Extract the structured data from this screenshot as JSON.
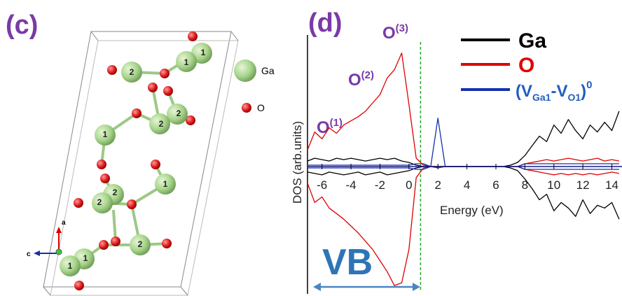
{
  "panel_c": {
    "label": "(c)",
    "atoms": [
      {
        "label": "1"
      },
      {
        "label": "1"
      },
      {
        "label": "2"
      },
      {
        "label": "2"
      },
      {
        "label": "2"
      },
      {
        "label": "1"
      },
      {
        "label": "2"
      },
      {
        "label": "2"
      },
      {
        "label": "1"
      },
      {
        "label": "2"
      },
      {
        "label": "1"
      },
      {
        "label": "1"
      }
    ],
    "legend": [
      {
        "label": "Ga"
      },
      {
        "label": "O"
      }
    ],
    "axes": [
      {
        "label": "a"
      },
      {
        "label": "c"
      }
    ]
  },
  "chart_data": {
    "type": "line",
    "panel_label": "(d)",
    "ylabel": "DOS (arb.units)",
    "xlabel": "Energy (eV)",
    "xlim": [
      -7,
      14.7
    ],
    "ylim": [
      -9,
      9
    ],
    "xticks": [
      -6,
      -4,
      -2,
      0,
      2,
      4,
      6,
      8,
      10,
      12,
      14
    ],
    "vbm": 0.8,
    "vb_label": "VB",
    "annotations": [
      {
        "text": "O",
        "sup": "(1)"
      },
      {
        "text": "O",
        "sup": "(2)"
      },
      {
        "text": "O",
        "sup": "(3)"
      }
    ],
    "x": [
      -7,
      -6.5,
      -6,
      -5.5,
      -5,
      -4.5,
      -4,
      -3.5,
      -3,
      -2.5,
      -2,
      -1.5,
      -1,
      -0.5,
      0,
      0.5,
      1,
      1.5,
      2,
      2.5,
      3,
      3.5,
      4,
      4.5,
      5,
      5.5,
      6,
      6.5,
      7,
      7.5,
      8,
      8.5,
      9,
      9.5,
      10,
      10.5,
      11,
      11.5,
      12,
      12.5,
      13,
      13.5,
      14,
      14.5
    ],
    "series": [
      {
        "name": "Ga",
        "color": "#000000",
        "values": [
          0.4,
          0.6,
          0.5,
          0.4,
          0.6,
          0.5,
          0.6,
          0.5,
          0.4,
          0.5,
          0.6,
          0.5,
          0.6,
          0.4,
          0.3,
          0.1,
          0,
          0,
          0,
          0,
          0,
          0,
          0,
          0,
          0,
          0,
          0,
          0,
          0.1,
          0.3,
          0.8,
          1.5,
          2.2,
          1.8,
          3.0,
          2.4,
          3.4,
          2.6,
          2.0,
          3.0,
          2.5,
          3.2,
          2.6,
          4.0
        ],
        "values_down": [
          -0.4,
          -0.5,
          -0.6,
          -0.4,
          -0.5,
          -0.6,
          -0.5,
          -0.4,
          -0.6,
          -0.5,
          -0.4,
          -0.6,
          -0.5,
          -0.4,
          -0.3,
          -0.1,
          0,
          0,
          0,
          0,
          0,
          0,
          0,
          0,
          0,
          0,
          0,
          0,
          -0.1,
          -0.3,
          -0.9,
          -1.6,
          -2.4,
          -2.0,
          -3.2,
          -2.6,
          -3.0,
          -3.6,
          -2.4,
          -3.4,
          -2.8,
          -3.0,
          -2.6,
          -3.8
        ]
      },
      {
        "name": "O",
        "color": "#e00000",
        "values": [
          1.2,
          2.5,
          2.0,
          2.8,
          2.4,
          3.0,
          3.3,
          3.6,
          4.0,
          4.6,
          5.2,
          6.4,
          7.0,
          8.2,
          4.5,
          0.6,
          0.1,
          0,
          0,
          0,
          0,
          0,
          0,
          0,
          0,
          0,
          0,
          0,
          0,
          0,
          0.2,
          0.3,
          0.4,
          0.5,
          0.4,
          0.5,
          0.6,
          0.5,
          0.4,
          0.5,
          0.6,
          0.4,
          0.5,
          0.4
        ],
        "values_down": [
          -1.2,
          -2.6,
          -2.2,
          -3.0,
          -3.4,
          -3.8,
          -4.3,
          -4.8,
          -5.4,
          -6.0,
          -6.8,
          -7.6,
          -8.6,
          -8.4,
          -6.0,
          -0.8,
          -0.1,
          0,
          0,
          0,
          0,
          0,
          0,
          0,
          0,
          0,
          0,
          0,
          0,
          0,
          -0.2,
          -0.3,
          -0.4,
          -0.5,
          -0.6,
          -0.5,
          -0.6,
          -0.5,
          -0.6,
          -0.5,
          -0.6,
          -0.5,
          -0.4,
          -0.5
        ]
      },
      {
        "name_parts": [
          "(V",
          "Ga1",
          "-V",
          "O1",
          ")",
          "0"
        ],
        "color": "#1530b0",
        "values": [
          0.1,
          0.1,
          0.1,
          0.1,
          0.1,
          0.1,
          0.1,
          0.1,
          0.1,
          0.1,
          0.1,
          0.1,
          0.1,
          0.1,
          0.1,
          0.2,
          0.2,
          0,
          3.5,
          0,
          0,
          0,
          0,
          0,
          0,
          0,
          0,
          0,
          0,
          0,
          0.2,
          0.2,
          0.2,
          0.2,
          0.2,
          0.2,
          0.2,
          0.2,
          0.2,
          0.2,
          0.2,
          0.2,
          0.2,
          0.2
        ],
        "values_down": [
          -0.1,
          -0.1,
          -0.1,
          -0.1,
          -0.1,
          -0.1,
          -0.1,
          -0.1,
          -0.1,
          -0.1,
          -0.1,
          -0.1,
          -0.1,
          -0.1,
          -0.1,
          -0.2,
          -0.2,
          0,
          -0.1,
          0,
          0,
          0,
          0,
          0,
          0,
          0,
          0,
          0,
          0,
          0,
          -0.2,
          -0.2,
          -0.2,
          -0.2,
          -0.2,
          -0.2,
          -0.2,
          -0.2,
          -0.2,
          -0.2,
          -0.2,
          -0.2,
          -0.2,
          -0.2
        ]
      }
    ]
  }
}
